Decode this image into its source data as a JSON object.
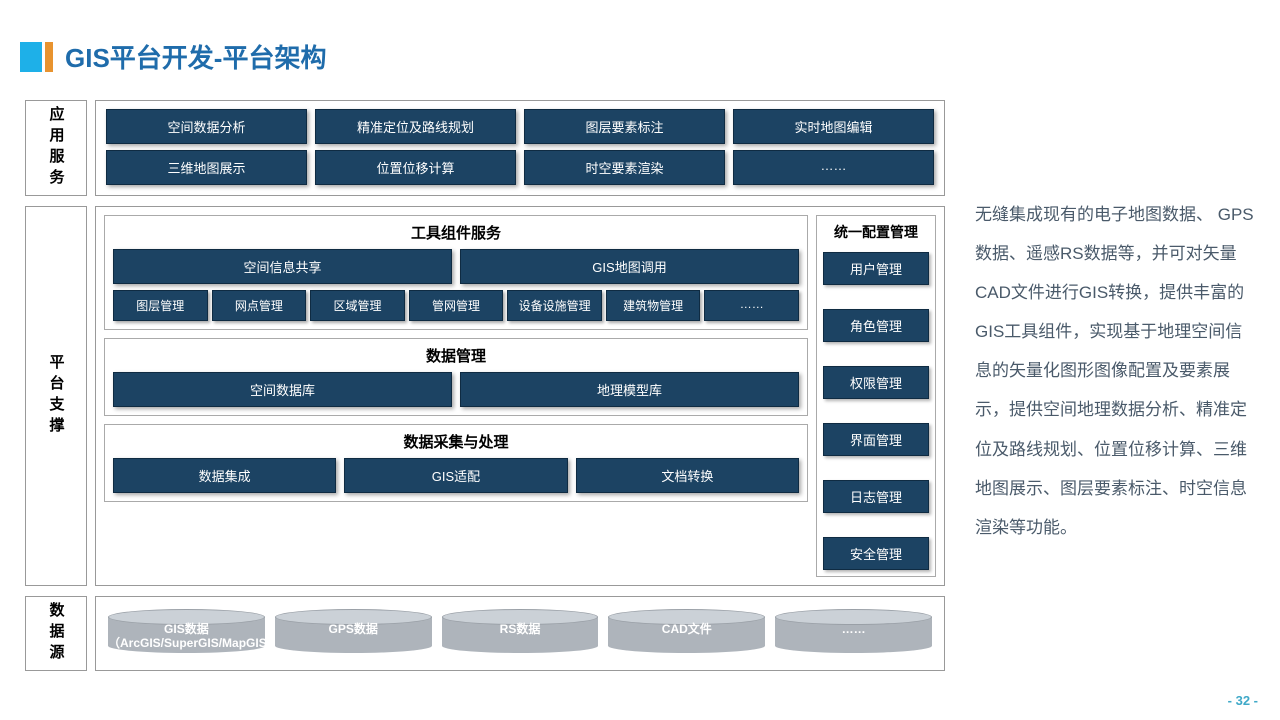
{
  "colors": {
    "title": "#1f6cab",
    "cyan_block": "#1eb0e8",
    "orange_block": "#e8932f",
    "btn_bg": "#1c4363",
    "btn_text": "#ffffff",
    "border": "#999999",
    "text": "#4a5a6a",
    "cyl_top": "#cbd1d7",
    "cyl_body": "#aeb4bb",
    "pagenum": "#3fa9c8"
  },
  "title": "GIS平台开发-平台架构",
  "app_layer": {
    "label": "应用服务",
    "row1": [
      "空间数据分析",
      "精准定位及路线规划",
      "图层要素标注",
      "实时地图编辑"
    ],
    "row2": [
      "三维地图展示",
      "位置位移计算",
      "时空要素渲染",
      "……"
    ]
  },
  "platform_layer": {
    "label": "平台支撑",
    "tool_panel": {
      "title": "工具组件服务",
      "big": [
        "空间信息共享",
        "GIS地图调用"
      ],
      "mgmt": [
        "图层管理",
        "网点管理",
        "区域管理",
        "管网管理",
        "设备设施管理",
        "建筑物管理",
        "……"
      ]
    },
    "data_panel": {
      "title": "数据管理",
      "items": [
        "空间数据库",
        "地理模型库"
      ]
    },
    "collect_panel": {
      "title": "数据采集与处理",
      "items": [
        "数据集成",
        "GIS适配",
        "文档转换"
      ]
    },
    "cfg": {
      "title": "统一配置管理",
      "items": [
        "用户管理",
        "角色管理",
        "权限管理",
        "界面管理",
        "日志管理",
        "安全管理"
      ]
    }
  },
  "data_layer": {
    "label": "数据源",
    "items": [
      "GIS数据\n（ArcGIS/SuperGIS/MapGIS）",
      "GPS数据",
      "RS数据",
      "CAD文件",
      "……"
    ]
  },
  "side_text": "无缝集成现有的电子地图数据、 GPS数据、遥感RS数据等，并可对矢量CAD文件进行GIS转换，提供丰富的GIS工具组件，实现基于地理空间信息的矢量化图形图像配置及要素展示，提供空间地理数据分析、精准定位及路线规划、位置位移计算、三维地图展示、图层要素标注、时空信息渲染等功能。",
  "page_num": "- 32 -"
}
